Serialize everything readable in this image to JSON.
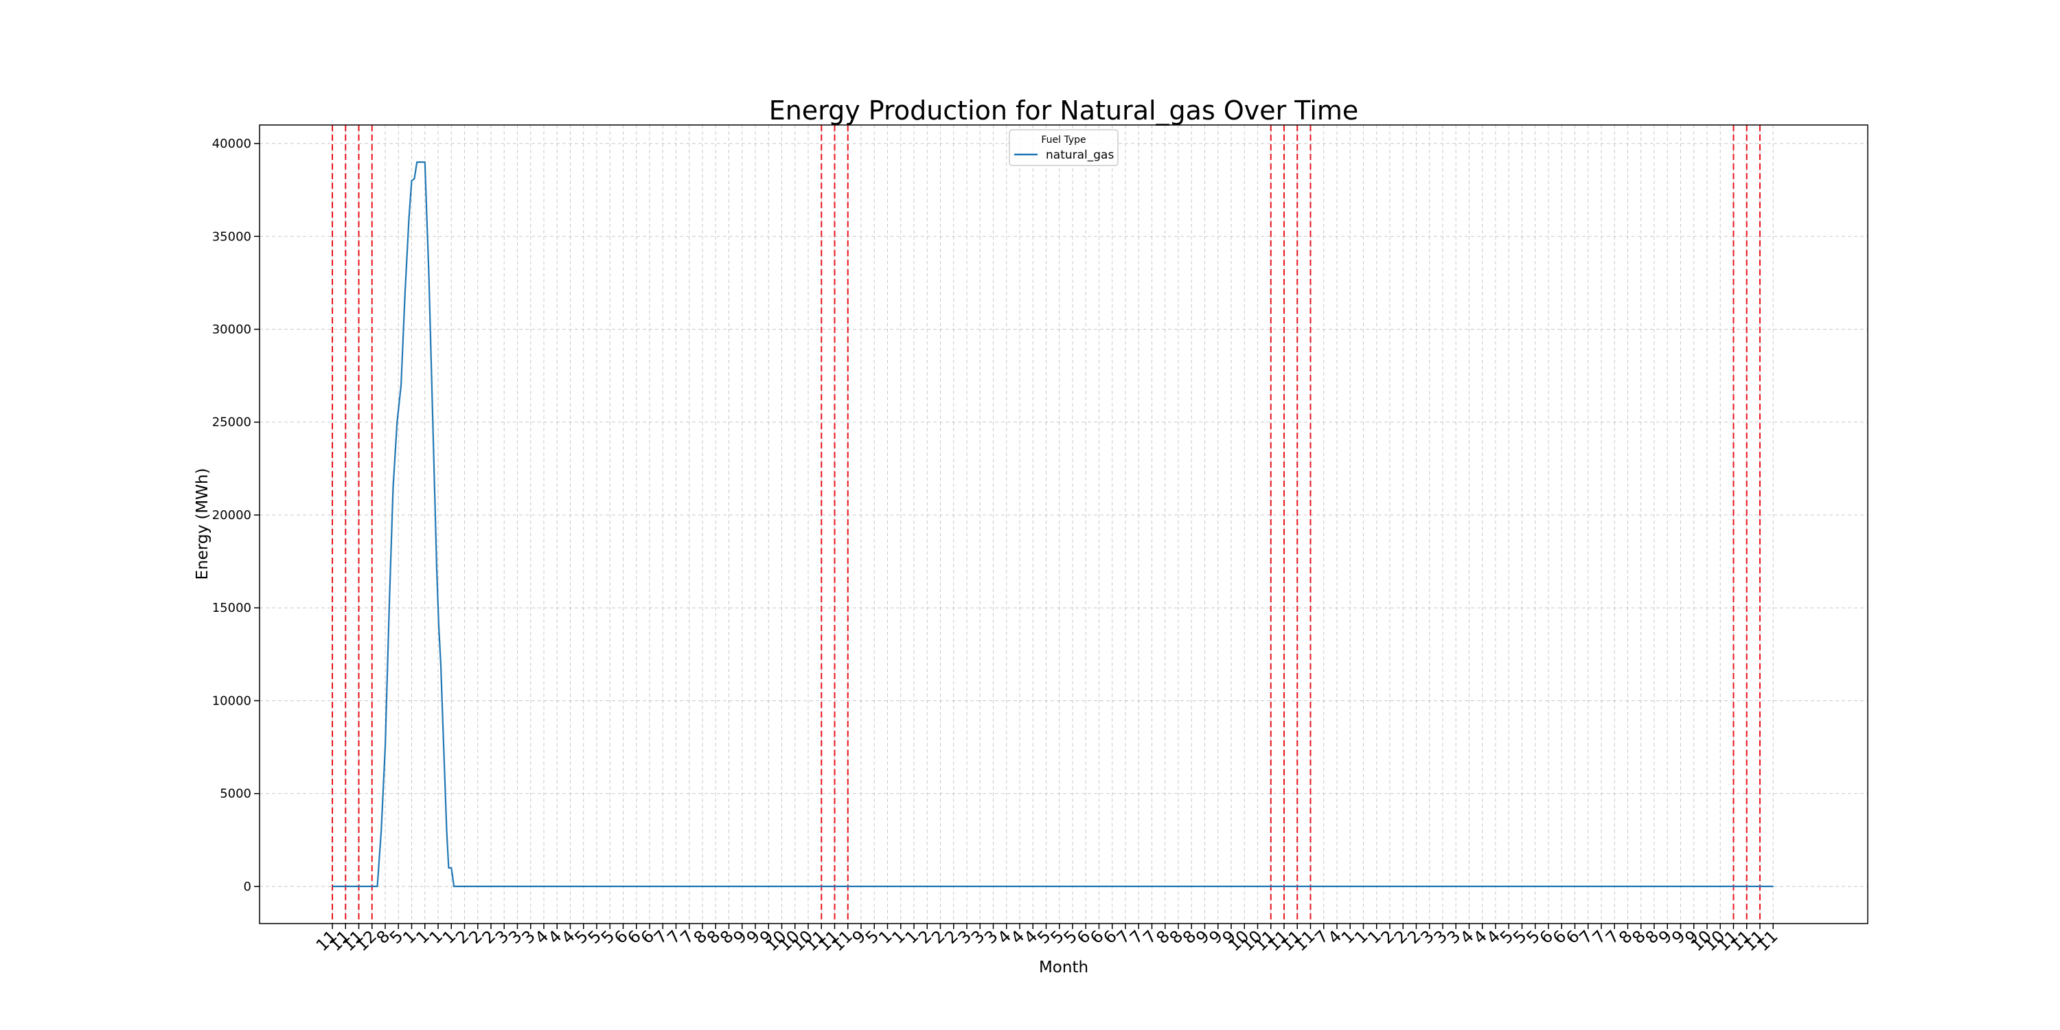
{
  "chart_data": {
    "type": "line",
    "title": "Energy Production for Natural_gas Over Time",
    "xlabel": "Month",
    "ylabel": "Energy (MWh)",
    "ylim": [
      -2000,
      41000
    ],
    "yticks": [
      0,
      5000,
      10000,
      15000,
      20000,
      25000,
      30000,
      35000,
      40000
    ],
    "grid": true,
    "legend": {
      "title": "Fuel Type",
      "entries": [
        "natural_gas"
      ],
      "placement": "top-center"
    },
    "x_tick_labels": [
      "11",
      "11",
      "11",
      "12",
      "8",
      "5",
      "1",
      "1",
      "1",
      "1",
      "2",
      "2",
      "2",
      "3",
      "3",
      "3",
      "4",
      "4",
      "4",
      "5",
      "5",
      "5",
      "6",
      "6",
      "6",
      "7",
      "7",
      "7",
      "8",
      "8",
      "8",
      "9",
      "9",
      "9",
      "10",
      "10",
      "10",
      "11",
      "11",
      "11",
      "9",
      "5",
      "1",
      "1",
      "1",
      "2",
      "2",
      "2",
      "3",
      "3",
      "3",
      "4",
      "4",
      "4",
      "5",
      "5",
      "5",
      "6",
      "6",
      "6",
      "7",
      "7",
      "7",
      "8",
      "8",
      "8",
      "9",
      "9",
      "9",
      "10",
      "10",
      "11",
      "11",
      "11",
      "11",
      "7",
      "4",
      "1",
      "1",
      "1",
      "2",
      "2",
      "2",
      "3",
      "3",
      "3",
      "4",
      "4",
      "4",
      "5",
      "5",
      "5",
      "6",
      "6",
      "6",
      "7",
      "7",
      "7",
      "8",
      "8",
      "8",
      "9",
      "9",
      "9",
      "10",
      "10",
      "11",
      "11",
      "11",
      "11"
    ],
    "red_dashed_markers_at_index": [
      0,
      1,
      2,
      3,
      37,
      38,
      39,
      71,
      72,
      73,
      74,
      106,
      107,
      108
    ],
    "series": [
      {
        "name": "natural_gas",
        "color": "#1f77b4",
        "points": [
          [
            0,
            0
          ],
          [
            3.4,
            0
          ],
          [
            3.7,
            3000
          ],
          [
            4.0,
            7500
          ],
          [
            4.3,
            15000
          ],
          [
            4.6,
            21500
          ],
          [
            4.9,
            25000
          ],
          [
            5.2,
            27000
          ],
          [
            5.5,
            32000
          ],
          [
            5.8,
            36000
          ],
          [
            6.0,
            38000
          ],
          [
            6.2,
            38100
          ],
          [
            6.4,
            39000
          ],
          [
            6.6,
            39000
          ],
          [
            6.8,
            39000
          ],
          [
            7.0,
            39000
          ],
          [
            7.15,
            36000
          ],
          [
            7.3,
            33000
          ],
          [
            7.45,
            29000
          ],
          [
            7.6,
            25000
          ],
          [
            7.75,
            21000
          ],
          [
            7.9,
            17000
          ],
          [
            8.05,
            14000
          ],
          [
            8.2,
            12000
          ],
          [
            8.35,
            9000
          ],
          [
            8.5,
            6000
          ],
          [
            8.65,
            3000
          ],
          [
            8.8,
            1000
          ],
          [
            9.0,
            1000
          ],
          [
            9.2,
            0
          ],
          [
            109,
            0
          ]
        ]
      }
    ]
  }
}
